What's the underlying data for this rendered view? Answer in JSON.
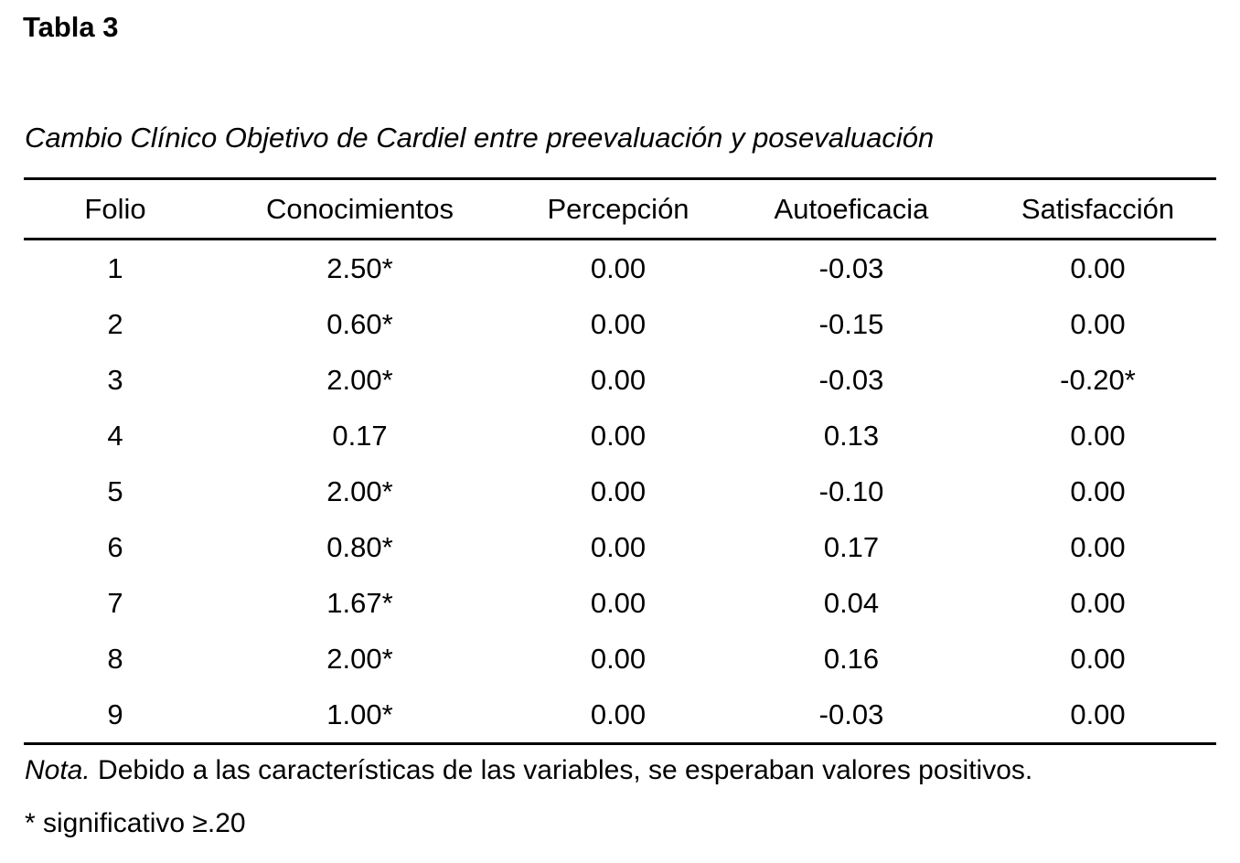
{
  "document": {
    "label": "Tabla 3",
    "caption": "Cambio Clínico Objetivo de Cardiel entre preevaluación y posevaluación",
    "table": {
      "columns": [
        "Folio",
        "Conocimientos",
        "Percepción",
        "Autoeficacia",
        "Satisfacción"
      ],
      "column_keys": [
        "folio",
        "conocimientos",
        "percepcion",
        "autoeficacia",
        "satisfaccion"
      ],
      "rows": [
        [
          "1",
          "2.50*",
          "0.00",
          "-0.03",
          "0.00"
        ],
        [
          "2",
          "0.60*",
          "0.00",
          "-0.15",
          "0.00"
        ],
        [
          "3",
          "2.00*",
          "0.00",
          "-0.03",
          "-0.20*"
        ],
        [
          "4",
          "0.17",
          "0.00",
          "0.13",
          "0.00"
        ],
        [
          "5",
          "2.00*",
          "0.00",
          "-0.10",
          "0.00"
        ],
        [
          "6",
          "0.80*",
          "0.00",
          "0.17",
          "0.00"
        ],
        [
          "7",
          "1.67*",
          "0.00",
          "0.04",
          "0.00"
        ],
        [
          "8",
          "2.00*",
          "0.00",
          "0.16",
          "0.00"
        ],
        [
          "9",
          "1.00*",
          "0.00",
          "-0.03",
          "0.00"
        ]
      ]
    },
    "note": {
      "lead": "Nota.",
      "text": " Debido a las características de las variables, se esperaban valores positivos."
    },
    "footnote": "* significativo ≥.20",
    "colors": {
      "text": "#000000",
      "background": "#ffffff",
      "rule": "#000000"
    }
  }
}
